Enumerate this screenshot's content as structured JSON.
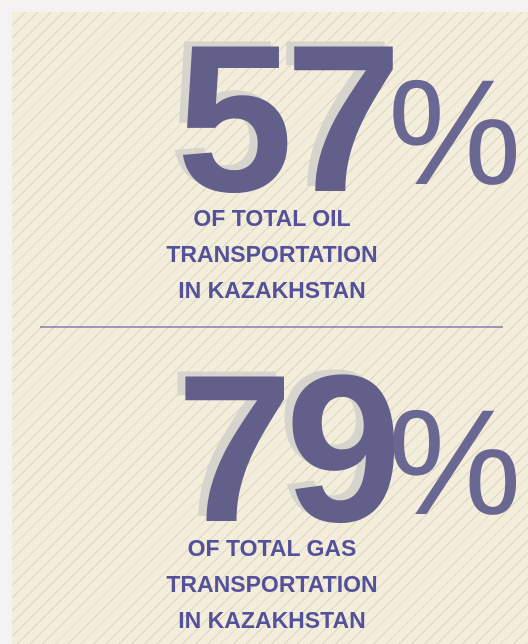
{
  "stats": [
    {
      "value": 57,
      "unit": "%",
      "lines": [
        "OF TOTAL OIL",
        "TRANSPORTATION",
        "IN KAZAKHSTAN"
      ]
    },
    {
      "value": 79,
      "unit": "%",
      "lines": [
        "OF TOTAL GAS",
        "TRANSPORTATION",
        "IN KAZAKHSTAN"
      ]
    }
  ]
}
